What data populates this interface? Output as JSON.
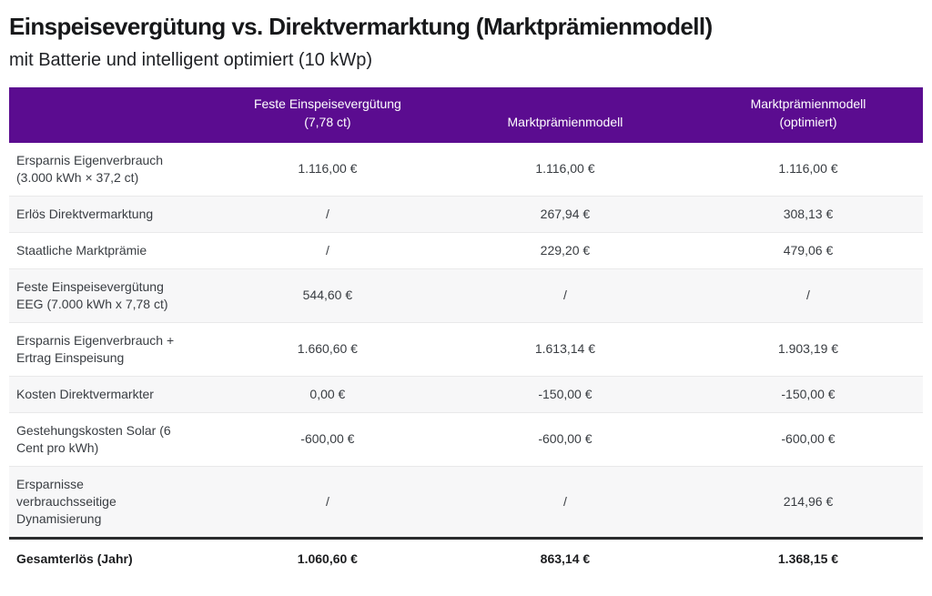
{
  "colors": {
    "header_bg": "#5B0C90",
    "header_text": "#FFFFFF",
    "alt_row_bg": "#F7F7F8",
    "row_divider": "#E9E9EA",
    "total_rule": "#2B2C2E",
    "body_text": "#393D42",
    "title_text": "#17181A"
  },
  "chart_data": {
    "type": "table",
    "title": "Einspeisevergütung vs. Direktvermarktung (Marktprämienmodell)",
    "subtitle": "mit Batterie und intelligent optimiert (10 kWp)",
    "columns": [
      "",
      "Feste Einspeisevergütung\n(7,78 ct)",
      "Marktprämienmodell",
      "Marktprämienmodell\n(optimiert)"
    ],
    "rows": [
      {
        "label": "Ersparnis Eigenverbrauch\n(3.000 kWh × 37,2 ct)",
        "values": [
          "1.116,00 €",
          "1.116,00 €",
          "1.116,00 €"
        ]
      },
      {
        "label": "Erlös Direktvermarktung",
        "values": [
          "/",
          "267,94 €",
          "308,13 €"
        ]
      },
      {
        "label": "Staatliche Marktprämie",
        "values": [
          "/",
          "229,20 €",
          "479,06 €"
        ]
      },
      {
        "label": "Feste Einspeisevergütung\nEEG (7.000 kWh x 7,78 ct)",
        "values": [
          "544,60 €",
          "/",
          "/"
        ]
      },
      {
        "label": "Ersparnis Eigenverbrauch +\nErtrag Einspeisung",
        "values": [
          "1.660,60 €",
          "1.613,14 €",
          "1.903,19 €"
        ]
      },
      {
        "label": "Kosten Direktvermarkter",
        "values": [
          "0,00 €",
          "-150,00 €",
          "-150,00 €"
        ]
      },
      {
        "label": "Gestehungskosten Solar (6\nCent pro kWh)",
        "values": [
          "-600,00 €",
          "-600,00 €",
          "-600,00 €"
        ]
      },
      {
        "label": "Ersparnisse\nverbrauchsseitige\nDynamisierung",
        "values": [
          "/",
          "/",
          "214,96 €"
        ]
      }
    ],
    "total": {
      "label": "Gesamterlös (Jahr)",
      "values": [
        "1.060,60 €",
        "863,14 €",
        "1.368,15 €"
      ]
    }
  }
}
